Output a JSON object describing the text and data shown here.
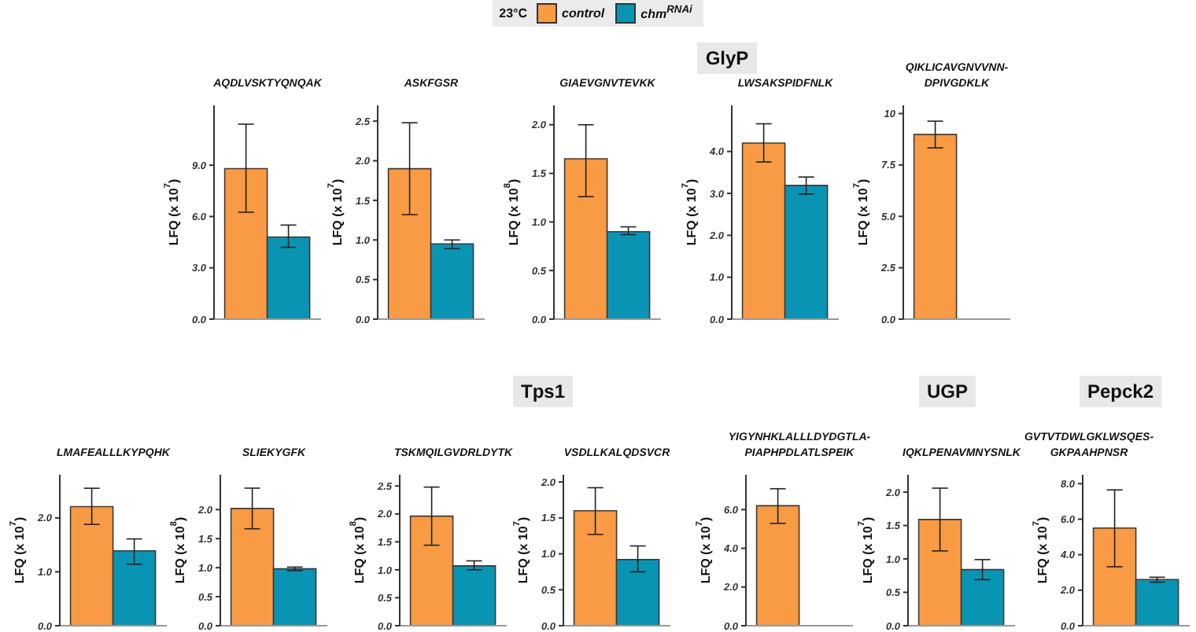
{
  "chart_data": [
    {
      "type": "bar",
      "title": "AQDLVSKTYQNQAK",
      "ylabel": "LFQ (x 10$^{7}$)",
      "legend": "top",
      "legend_title": "23°C",
      "categories": [
        null
      ],
      "ylim": [
        0,
        12.5
      ],
      "yticks": [
        {
          "value": 0,
          "label": "0.0"
        },
        {
          "value": 3,
          "label": "3.0"
        },
        {
          "value": 6,
          "label": "6.0"
        },
        {
          "value": 9,
          "label": "9.0"
        }
      ],
      "series": [
        {
          "name": "control",
          "color": "#f99b45",
          "values": [
            8.8
          ],
          "errors": [
            [
              6.25,
              11.4
            ]
          ]
        },
        {
          "name": "chm$^{RNAi}$",
          "color": "#0a94b4",
          "values": [
            4.8
          ],
          "errors": [
            [
              4.2,
              5.5
            ]
          ]
        }
      ]
    },
    {
      "type": "bar",
      "title": "ASKFGSR",
      "ylabel": "LFQ (x 10$^{7}$)",
      "categories": [
        null
      ],
      "ylim": [
        0,
        2.7
      ],
      "yticks": [
        {
          "value": 0,
          "label": "0.0"
        },
        {
          "value": 0.5,
          "label": "0.5"
        },
        {
          "value": 1,
          "label": "1.0"
        },
        {
          "value": 1.5,
          "label": "1.5"
        },
        {
          "value": 2,
          "label": "2.0"
        },
        {
          "value": 2.5,
          "label": "2.5"
        }
      ],
      "series": [
        {
          "color": "#f99b45",
          "values": [
            1.9
          ],
          "errors": [
            [
              1.32,
              2.48
            ]
          ]
        },
        {
          "color": "#0a94b4",
          "values": [
            0.95
          ],
          "errors": [
            [
              0.89,
              1.0
            ]
          ]
        }
      ]
    },
    {
      "type": "bar",
      "title": "GIAEVGNVTEVKK",
      "ylabel": "LFQ (x 10$^{8}$)",
      "annotations": [
        "GlyP"
      ],
      "categories": [
        null
      ],
      "ylim": [
        0,
        2.2
      ],
      "yticks": [
        {
          "value": 0,
          "label": "0.0"
        },
        {
          "value": 0.5,
          "label": "0.5"
        },
        {
          "value": 1,
          "label": "1.0"
        },
        {
          "value": 1.5,
          "label": "1.5"
        },
        {
          "value": 2,
          "label": "2.0"
        }
      ],
      "series": [
        {
          "color": "#f99b45",
          "values": [
            1.65
          ],
          "errors": [
            [
              1.26,
              2.0
            ]
          ]
        },
        {
          "color": "#0a94b4",
          "values": [
            0.9
          ],
          "errors": [
            [
              0.87,
              0.95
            ]
          ]
        }
      ]
    },
    {
      "type": "bar",
      "title": "LWSAKSPIDFNLK",
      "ylabel": "LFQ (x 10$^{7}$)",
      "categories": [
        null
      ],
      "ylim": [
        0,
        5.1
      ],
      "yticks": [
        {
          "value": 0,
          "label": "0.0"
        },
        {
          "value": 1,
          "label": "1.0"
        },
        {
          "value": 2,
          "label": "2.0"
        },
        {
          "value": 3,
          "label": "3.0"
        },
        {
          "value": 4,
          "label": "4.0"
        }
      ],
      "series": [
        {
          "color": "#f99b45",
          "values": [
            4.2
          ],
          "errors": [
            [
              3.75,
              4.66
            ]
          ]
        },
        {
          "color": "#0a94b4",
          "values": [
            3.19
          ],
          "errors": [
            [
              2.98,
              3.39
            ]
          ]
        }
      ]
    },
    {
      "type": "bar",
      "title": "QIKLICAVGNVVNN-DPIVGDKLK",
      "ylabel": "LFQ (x 10$^{7}$)",
      "categories": [
        null
      ],
      "ylim": [
        0,
        10.4
      ],
      "yticks": [
        {
          "value": 0,
          "label": "0.0"
        },
        {
          "value": 2.5,
          "label": "2.5"
        },
        {
          "value": 5,
          "label": "5.0"
        },
        {
          "value": 7.5,
          "label": "7.5"
        },
        10
      ],
      "series": [
        {
          "color": "#f99b45",
          "values": [
            8.98
          ],
          "errors": [
            [
              8.33,
              9.63
            ]
          ]
        },
        {
          "color": "#0a94b4",
          "values": [
            null
          ],
          "errors": [
            null
          ]
        }
      ]
    },
    {
      "type": "bar",
      "title": "LMAFEALLLKYPQHK",
      "ylabel": "LFQ (x 10$^{7}$)",
      "categories": [
        null
      ],
      "ylim": [
        0,
        2.8
      ],
      "yticks": [
        {
          "value": 0,
          "label": "0.0"
        },
        {
          "value": 1,
          "label": "1.0"
        },
        {
          "value": 2,
          "label": "2.0"
        }
      ],
      "series": [
        {
          "color": "#f99b45",
          "values": [
            2.21
          ],
          "errors": [
            [
              1.88,
              2.55
            ]
          ]
        },
        {
          "color": "#0a94b4",
          "values": [
            1.39
          ],
          "errors": [
            [
              1.14,
              1.61
            ]
          ]
        }
      ]
    },
    {
      "type": "bar",
      "title": "SLIEKYGFK",
      "ylabel": "LFQ (x 10$^{8}$)",
      "categories": [
        null
      ],
      "ylim": [
        0,
        2.6
      ],
      "yticks": [
        {
          "value": 0,
          "label": "0.0"
        },
        {
          "value": 0.5,
          "label": "0.5"
        },
        {
          "value": 1,
          "label": "1.0"
        },
        {
          "value": 1.5,
          "label": "1.5"
        },
        {
          "value": 2,
          "label": "2.0"
        }
      ],
      "series": [
        {
          "color": "#f99b45",
          "values": [
            2.02
          ],
          "errors": [
            [
              1.67,
              2.37
            ]
          ]
        },
        {
          "color": "#0a94b4",
          "values": [
            0.98
          ],
          "errors": [
            [
              0.95,
              1.01
            ]
          ]
        }
      ]
    },
    {
      "type": "bar",
      "title": "TSKMQILGVDRLDYTK",
      "ylabel": "LFQ (x 10$^{8}$)",
      "annotations": [
        "Tps1"
      ],
      "categories": [
        null
      ],
      "ylim": [
        0,
        2.7
      ],
      "yticks": [
        {
          "value": 0,
          "label": "0.0"
        },
        {
          "value": 0.5,
          "label": "0.5"
        },
        {
          "value": 1,
          "label": "1.0"
        },
        {
          "value": 1.5,
          "label": "1.5"
        },
        {
          "value": 2,
          "label": "2.0"
        },
        {
          "value": 2.5,
          "label": "2.5"
        }
      ],
      "series": [
        {
          "color": "#f99b45",
          "values": [
            1.96
          ],
          "errors": [
            [
              1.44,
              2.48
            ]
          ]
        },
        {
          "color": "#0a94b4",
          "values": [
            1.07
          ],
          "errors": [
            [
              1.0,
              1.16
            ]
          ]
        }
      ]
    },
    {
      "type": "bar",
      "title": "VSDLLKALQDSVCR",
      "ylabel": "LFQ (x 10$^{7}$)",
      "categories": [
        null
      ],
      "ylim": [
        0,
        2.1
      ],
      "yticks": [
        {
          "value": 0,
          "label": "0.0"
        },
        {
          "value": 0.5,
          "label": "0.5"
        },
        {
          "value": 1,
          "label": "1.0"
        },
        {
          "value": 1.5,
          "label": "1.5"
        },
        {
          "value": 2,
          "label": "2.0"
        }
      ],
      "series": [
        {
          "color": "#f99b45",
          "values": [
            1.6
          ],
          "errors": [
            [
              1.27,
              1.92
            ]
          ]
        },
        {
          "color": "#0a94b4",
          "values": [
            0.92
          ],
          "errors": [
            [
              0.75,
              1.11
            ]
          ]
        }
      ]
    },
    {
      "type": "bar",
      "title": "YIGYNHKLALLLDYDGTLA-PIAPHPDLATLSPEIK",
      "ylabel": "LFQ (x 10$^{7}$)",
      "categories": [
        null
      ],
      "ylim": [
        0,
        7.8
      ],
      "yticks": [
        {
          "value": 0,
          "label": "0.0"
        },
        {
          "value": 2,
          "label": "2.0"
        },
        {
          "value": 4,
          "label": "4.0"
        },
        {
          "value": 6,
          "label": "6.0"
        }
      ],
      "series": [
        {
          "color": "#f99b45",
          "values": [
            6.2
          ],
          "errors": [
            [
              5.29,
              7.08
            ]
          ]
        },
        {
          "color": "#0a94b4",
          "values": [
            null
          ],
          "errors": [
            null
          ]
        }
      ]
    },
    {
      "type": "bar",
      "title": "IQKLPENAVMNYSNLK",
      "ylabel": "LFQ (x 10$^{7}$)",
      "annotations": [
        "UGP"
      ],
      "categories": [
        null
      ],
      "ylim": [
        0,
        2.26
      ],
      "yticks": [
        {
          "value": 0,
          "label": "0.0"
        },
        {
          "value": 0.5,
          "label": "0.5"
        },
        {
          "value": 1,
          "label": "1.0"
        },
        {
          "value": 1.5,
          "label": "1.5"
        },
        {
          "value": 2,
          "label": "2.0"
        }
      ],
      "series": [
        {
          "color": "#f99b45",
          "values": [
            1.59
          ],
          "errors": [
            [
              1.12,
              2.06
            ]
          ]
        },
        {
          "color": "#0a94b4",
          "values": [
            0.84
          ],
          "errors": [
            [
              0.69,
              0.99
            ]
          ]
        }
      ]
    },
    {
      "type": "bar",
      "title": "GVTVTDWLGKLWSQES-GKPAAHPNSR",
      "ylabel": "LFQ (x 10$^{7}$)",
      "annotations": [
        "Pepck2"
      ],
      "categories": [
        null
      ],
      "ylim": [
        0,
        8.5
      ],
      "yticks": [
        {
          "value": 0,
          "label": "0.0"
        },
        {
          "value": 2,
          "label": "2.0"
        },
        {
          "value": 4,
          "label": "4.0"
        },
        {
          "value": 6,
          "label": "6.0"
        },
        {
          "value": 8,
          "label": "8.0"
        }
      ],
      "series": [
        {
          "color": "#f99b45",
          "values": [
            5.5
          ],
          "errors": [
            [
              3.32,
              7.65
            ]
          ]
        },
        {
          "color": "#0a94b4",
          "values": [
            2.6
          ],
          "errors": [
            [
              2.45,
              2.73
            ]
          ]
        }
      ]
    }
  ]
}
